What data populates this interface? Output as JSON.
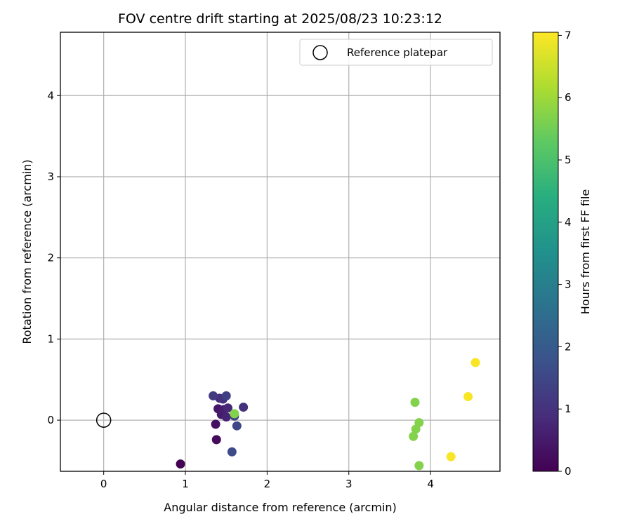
{
  "chart_data": {
    "type": "scatter",
    "title": "FOV centre drift starting at 2025/08/23 10:23:12",
    "xlabel": "Angular distance from reference (arcmin)",
    "ylabel": "Rotation from reference (arcmin)",
    "xlim": [
      -0.53,
      4.85
    ],
    "ylim": [
      -0.63,
      4.78
    ],
    "xticks": [
      "0",
      "1",
      "2",
      "3",
      "4"
    ],
    "yticks": [
      "0",
      "1",
      "2",
      "3",
      "4"
    ],
    "grid": true,
    "legend": {
      "placement": "top-right",
      "entries": [
        {
          "label": "Reference platepar",
          "marker": "open-circle",
          "color": "#000000"
        }
      ]
    },
    "reference_point": {
      "x": 0,
      "y": 0
    },
    "colorbar": {
      "label": "Hours from first FF file",
      "colormap": "viridis",
      "range": [
        0,
        7.05
      ],
      "ticks": [
        "0",
        "1",
        "2",
        "3",
        "4",
        "5",
        "6",
        "7"
      ]
    },
    "points": [
      {
        "x": 0.94,
        "y": -0.54,
        "hours": 0.0
      },
      {
        "x": 1.38,
        "y": -0.24,
        "hours": 0.2
      },
      {
        "x": 1.37,
        "y": -0.05,
        "hours": 0.3
      },
      {
        "x": 1.4,
        "y": 0.14,
        "hours": 0.4
      },
      {
        "x": 1.44,
        "y": 0.07,
        "hours": 0.5
      },
      {
        "x": 1.47,
        "y": 0.13,
        "hours": 0.6
      },
      {
        "x": 1.5,
        "y": 0.04,
        "hours": 0.7
      },
      {
        "x": 1.52,
        "y": 0.15,
        "hours": 0.8
      },
      {
        "x": 1.42,
        "y": 0.27,
        "hours": 0.9
      },
      {
        "x": 1.46,
        "y": 0.26,
        "hours": 1.0
      },
      {
        "x": 1.71,
        "y": 0.16,
        "hours": 1.0
      },
      {
        "x": 1.34,
        "y": 0.3,
        "hours": 1.2
      },
      {
        "x": 1.5,
        "y": 0.3,
        "hours": 1.3
      },
      {
        "x": 1.6,
        "y": 0.05,
        "hours": 1.4
      },
      {
        "x": 1.63,
        "y": -0.07,
        "hours": 1.5
      },
      {
        "x": 1.57,
        "y": -0.39,
        "hours": 1.6
      },
      {
        "x": 1.6,
        "y": 0.08,
        "hours": 5.7
      },
      {
        "x": 3.81,
        "y": 0.22,
        "hours": 5.7
      },
      {
        "x": 3.86,
        "y": -0.03,
        "hours": 5.7
      },
      {
        "x": 3.82,
        "y": -0.11,
        "hours": 5.7
      },
      {
        "x": 3.79,
        "y": -0.2,
        "hours": 5.7
      },
      {
        "x": 3.86,
        "y": -0.56,
        "hours": 5.7
      },
      {
        "x": 4.25,
        "y": -0.45,
        "hours": 7.0
      },
      {
        "x": 4.46,
        "y": 0.29,
        "hours": 7.0
      },
      {
        "x": 4.55,
        "y": 0.71,
        "hours": 7.0
      }
    ]
  }
}
